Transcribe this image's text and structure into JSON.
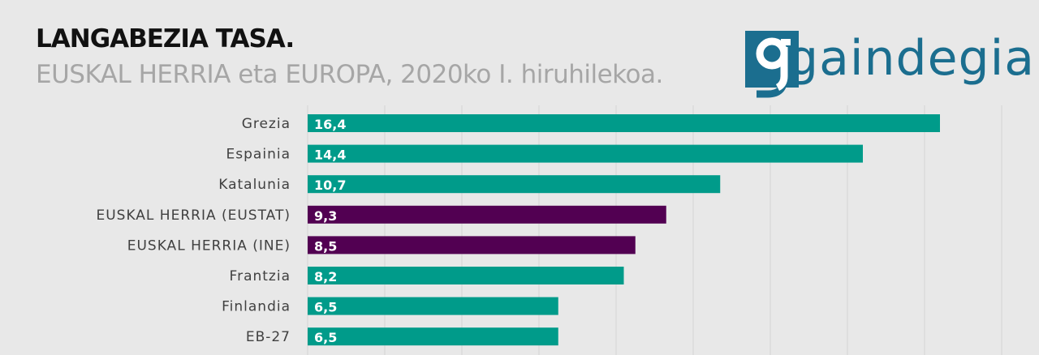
{
  "header": {
    "title": "LANGABEZIA TASA.",
    "subtitle": "EUSKAL HERRIA eta EUROPA, 2020ko I. hiruhilekoa."
  },
  "logo": {
    "text": "gaindegia",
    "color": "#1b6e8f"
  },
  "chart_data": {
    "type": "bar",
    "orientation": "horizontal",
    "categories": [
      "Grezia",
      "Espainia",
      "Katalunia",
      "EUSKAL HERRIA (EUSTAT)",
      "EUSKAL HERRIA (INE)",
      "Frantzia",
      "Finlandia",
      "EB-27"
    ],
    "values": [
      16.4,
      14.4,
      10.7,
      9.3,
      8.5,
      8.2,
      6.5,
      6.5
    ],
    "value_labels": [
      "16,4",
      "14,4",
      "10,7",
      "9,3",
      "8,5",
      "8,2",
      "6,5",
      "6,5"
    ],
    "bar_colors": [
      "#009b8a",
      "#009b8a",
      "#009b8a",
      "#520052",
      "#520052",
      "#009b8a",
      "#009b8a",
      "#009b8a"
    ],
    "xlim": [
      0,
      18
    ],
    "grid": true,
    "title": "LANGABEZIA TASA.",
    "subtitle": "EUSKAL HERRIA eta EUROPA, 2020ko I. hiruhilekoa."
  }
}
